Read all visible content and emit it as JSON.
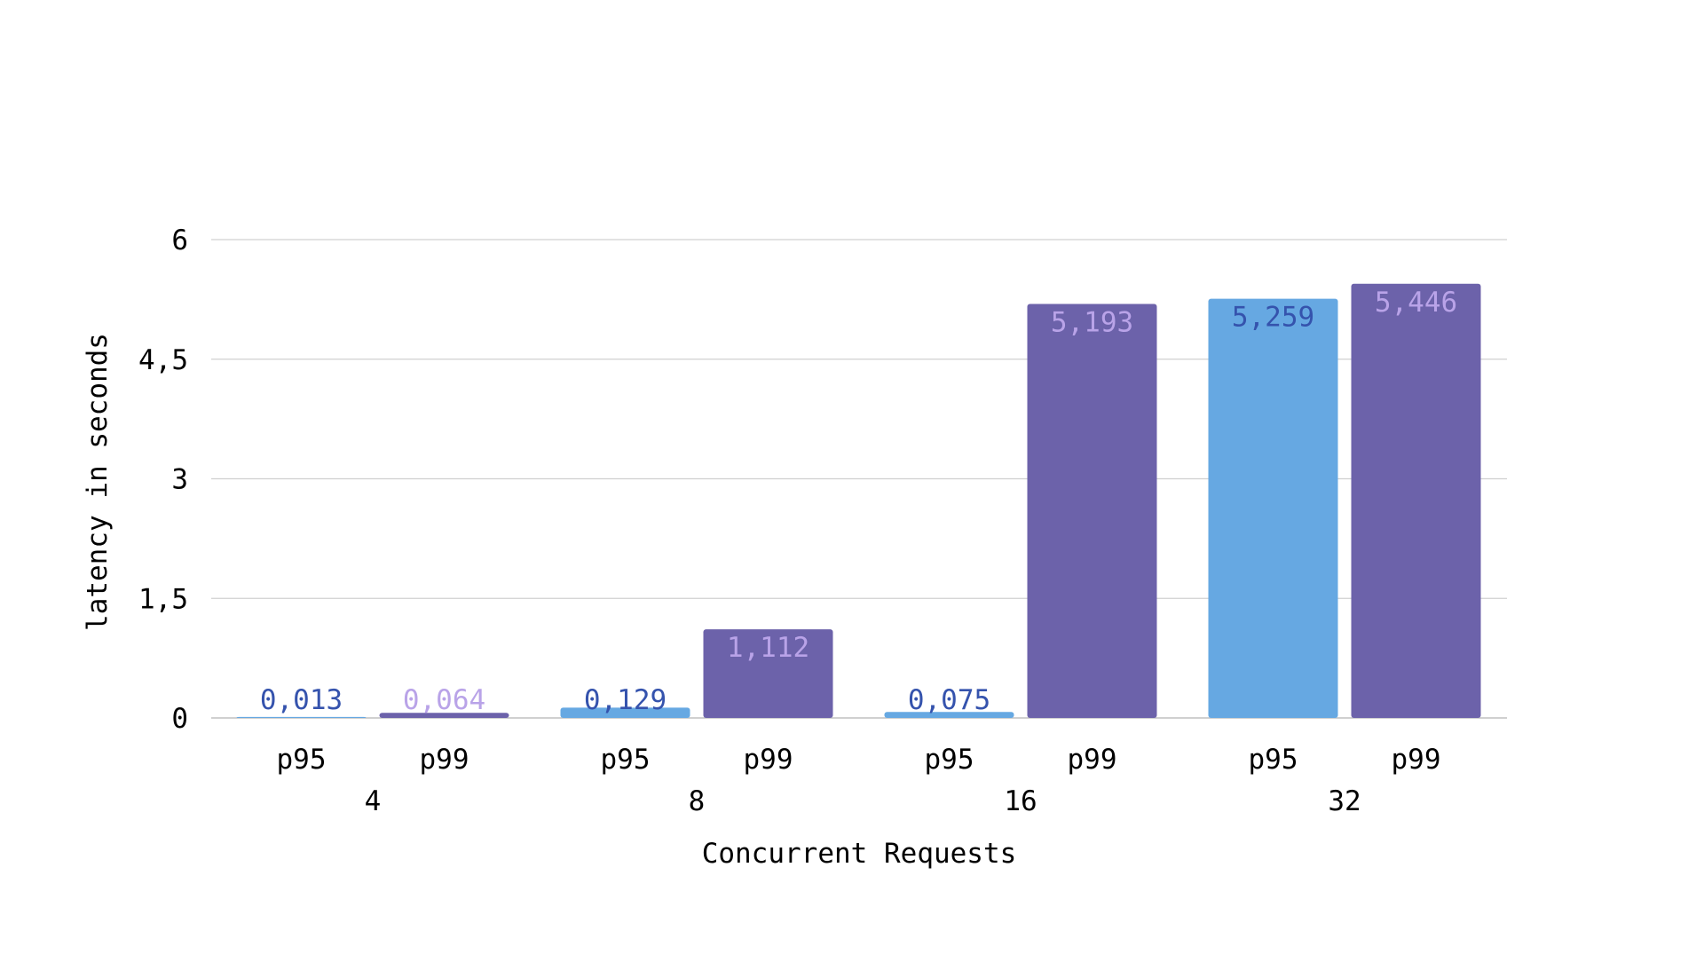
{
  "chart_data": {
    "type": "bar",
    "title": "",
    "xlabel": "Concurrent Requests",
    "ylabel": "latency in seconds",
    "ylim": [
      0,
      6
    ],
    "yticks": [
      0,
      1.5,
      3,
      4.5,
      6
    ],
    "ytick_labels": [
      "0",
      "1,5",
      "3",
      "4,5",
      "6"
    ],
    "grid": true,
    "categories": [
      "4",
      "8",
      "16",
      "32"
    ],
    "series": [
      {
        "name": "p95",
        "color": "#66a8e2",
        "label_color": "#3553ad",
        "values": [
          0.013,
          0.129,
          0.075,
          5.259
        ],
        "labels": [
          "0,013",
          "0,129",
          "0,075",
          "5,259"
        ]
      },
      {
        "name": "p99",
        "color": "#6c62aa",
        "label_color": "#b9a3e8",
        "values": [
          0.064,
          1.112,
          5.193,
          5.446
        ],
        "labels": [
          "0,064",
          "1,112",
          "5,193",
          "5,446"
        ]
      }
    ]
  }
}
